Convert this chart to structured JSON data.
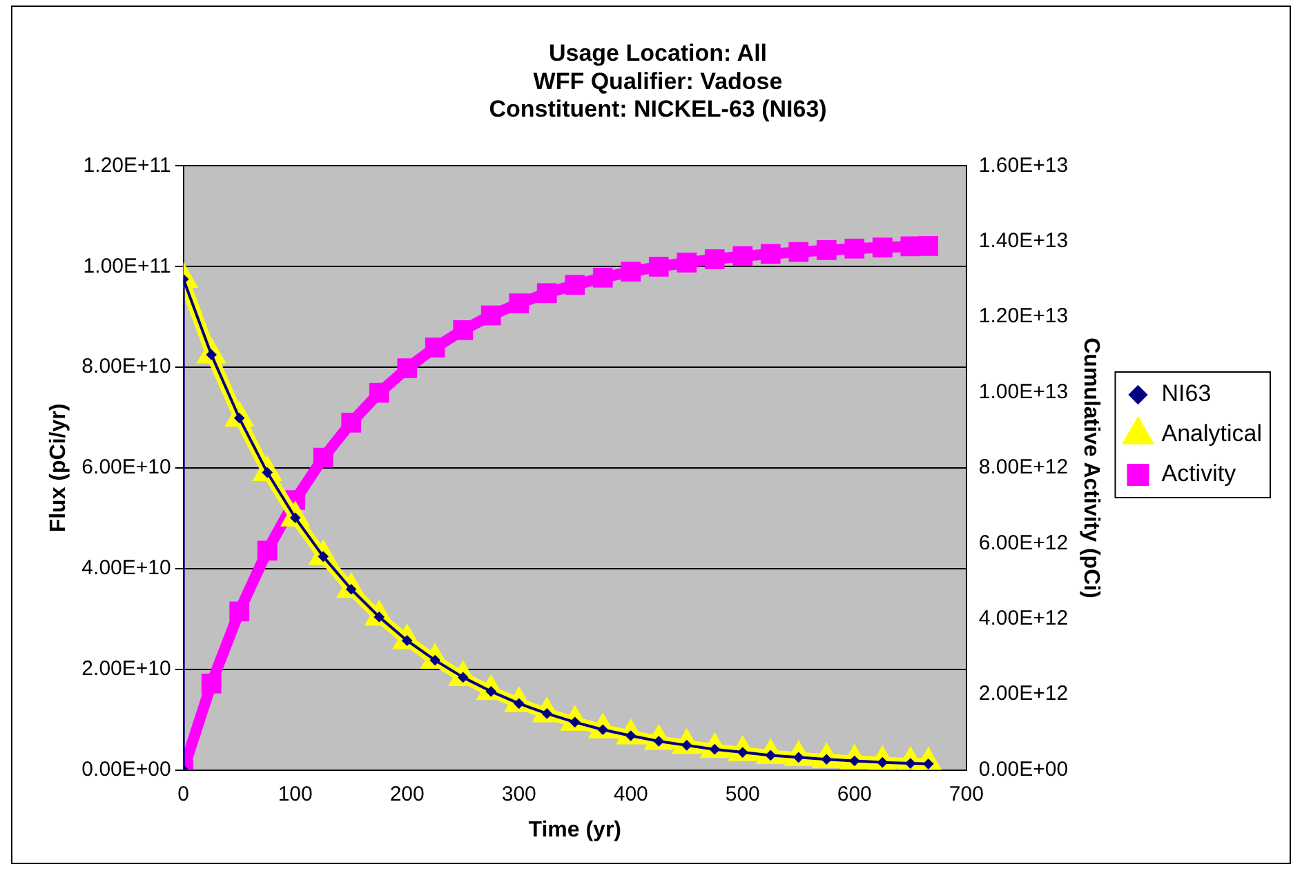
{
  "chart_data": {
    "type": "line",
    "title": "Usage Location: All\nWFF Qualifier: Vadose\nConstituent: NICKEL-63 (NI63)",
    "xlabel": "Time (yr)",
    "ylabel": "Flux (pCi/yr)",
    "y2label": "Cumulative Activity (pCi)",
    "xlim": [
      0,
      700
    ],
    "xticks": [
      0,
      100,
      200,
      300,
      400,
      500,
      600,
      700
    ],
    "ylim": [
      0,
      120000000000.0
    ],
    "yticks": [
      {
        "value": 0,
        "label": "0.00E+00"
      },
      {
        "value": 20000000000.0,
        "label": "2.00E+10"
      },
      {
        "value": 40000000000.0,
        "label": "4.00E+10"
      },
      {
        "value": 60000000000.0,
        "label": "6.00E+10"
      },
      {
        "value": 80000000000.0,
        "label": "8.00E+10"
      },
      {
        "value": 100000000000.0,
        "label": "1.00E+11"
      },
      {
        "value": 120000000000.0,
        "label": "1.20E+11"
      }
    ],
    "y2lim": [
      0,
      16000000000000.0
    ],
    "y2ticks": [
      {
        "value": 0,
        "label": "0.00E+00"
      },
      {
        "value": 2000000000000.0,
        "label": "2.00E+12"
      },
      {
        "value": 4000000000000.0,
        "label": "4.00E+12"
      },
      {
        "value": 6000000000000.0,
        "label": "6.00E+12"
      },
      {
        "value": 8000000000000.0,
        "label": "8.00E+12"
      },
      {
        "value": 10000000000000.0,
        "label": "1.00E+13"
      },
      {
        "value": 12000000000000.0,
        "label": "1.20E+13"
      },
      {
        "value": 14000000000000.0,
        "label": "1.40E+13"
      },
      {
        "value": 16000000000000.0,
        "label": "1.60E+13"
      }
    ],
    "grid": "y",
    "legend": "right",
    "series": [
      {
        "name": "NI63",
        "color": "#000080",
        "marker": "diamond",
        "x": [
          0,
          0,
          25,
          50,
          75,
          100,
          125,
          150,
          175,
          200,
          225,
          250,
          275,
          300,
          325,
          350,
          375,
          400,
          425,
          450,
          475,
          500,
          525,
          550,
          575,
          600,
          625,
          650,
          666
        ],
        "values": [
          0,
          97500000000.0,
          82500000000.0,
          69900000000.0,
          59100000000.0,
          50100000000.0,
          42400000000.0,
          35900000000.0,
          30400000000.0,
          25700000000.0,
          21800000000.0,
          18400000000.0,
          15600000000.0,
          13200000000.0,
          11200000000.0,
          9500000000.0,
          8000000000.0,
          6800000000.0,
          5700000000.0,
          4900000000.0,
          4100000000.0,
          3500000000.0,
          2900000000.0,
          2500000000.0,
          2100000000.0,
          1800000000.0,
          1500000000.0,
          1300000000.0,
          1200000000.0
        ]
      },
      {
        "name": "Analytical",
        "color": "#ffff00",
        "marker": "triangle",
        "x": [
          0,
          25,
          50,
          75,
          100,
          125,
          150,
          175,
          200,
          225,
          250,
          275,
          300,
          325,
          350,
          375,
          400,
          425,
          450,
          475,
          500,
          525,
          550,
          575,
          600,
          625,
          650,
          666
        ],
        "values": [
          97500000000.0,
          82500000000.0,
          69900000000.0,
          59100000000.0,
          50100000000.0,
          42400000000.0,
          35900000000.0,
          30400000000.0,
          25700000000.0,
          21800000000.0,
          18400000000.0,
          15600000000.0,
          13200000000.0,
          11200000000.0,
          9500000000.0,
          8000000000.0,
          6800000000.0,
          5700000000.0,
          4900000000.0,
          4100000000.0,
          3500000000.0,
          2900000000.0,
          2500000000.0,
          2100000000.0,
          1800000000.0,
          1500000000.0,
          1300000000.0,
          1200000000.0
        ]
      },
      {
        "name": "Activity",
        "color": "#ff00ff",
        "marker": "square",
        "axis": "y2",
        "x": [
          0,
          25,
          50,
          75,
          100,
          125,
          150,
          175,
          200,
          225,
          250,
          275,
          300,
          325,
          350,
          375,
          400,
          425,
          450,
          475,
          500,
          525,
          550,
          575,
          600,
          625,
          650,
          666
        ],
        "values": [
          0,
          2290000000000.0,
          4200000000000.0,
          5810000000000.0,
          7150000000000.0,
          8270000000000.0,
          9200000000000.0,
          9990000000000.0,
          10640000000000.0,
          11190000000000.0,
          11650000000000.0,
          12040000000000.0,
          12360000000000.0,
          12630000000000.0,
          12850000000000.0,
          13040000000000.0,
          13200000000000.0,
          13330000000000.0,
          13440000000000.0,
          13530000000000.0,
          13610000000000.0,
          13670000000000.0,
          13720000000000.0,
          13770000000000.0,
          13810000000000.0,
          13840000000000.0,
          13870000000000.0,
          13880000000000.0
        ]
      }
    ]
  }
}
